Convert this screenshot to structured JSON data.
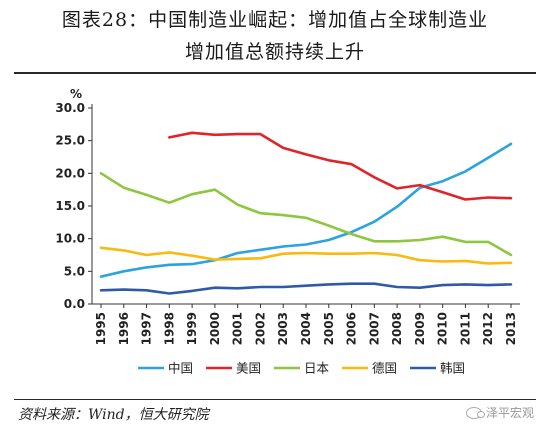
{
  "title": {
    "line1": "图表28：中国制造业崛起：增加值占全球制造业",
    "line2": "增加值总额持续上升"
  },
  "source": "资料来源：Wind，恒大研究院",
  "watermark": "泽平宏观",
  "chart_data": {
    "type": "line",
    "unit": "%",
    "x": [
      "1995",
      "1996",
      "1997",
      "1998",
      "1999",
      "2000",
      "2001",
      "2002",
      "2003",
      "2004",
      "2005",
      "2006",
      "2007",
      "2008",
      "2009",
      "2010",
      "2011",
      "2012",
      "2013"
    ],
    "ylim": [
      0,
      30
    ],
    "yticks": [
      "0.0",
      "5.0",
      "10.0",
      "15.0",
      "20.0",
      "25.0",
      "30.0"
    ],
    "grid": false,
    "legend_position": "bottom",
    "series": [
      {
        "name": "中国",
        "color": "#2aa3de",
        "values": [
          4.2,
          5.0,
          5.6,
          6.0,
          6.1,
          6.7,
          7.8,
          8.3,
          8.8,
          9.1,
          9.8,
          11.0,
          12.6,
          14.9,
          17.8,
          18.8,
          20.3,
          22.4,
          24.5
        ]
      },
      {
        "name": "美国",
        "color": "#e0242b",
        "values": [
          null,
          null,
          null,
          25.5,
          26.2,
          25.9,
          26.0,
          26.0,
          23.9,
          22.9,
          22.0,
          21.4,
          19.4,
          17.7,
          18.2,
          17.1,
          16.0,
          16.3,
          16.2
        ]
      },
      {
        "name": "日本",
        "color": "#8dc63f",
        "values": [
          20.0,
          17.8,
          16.7,
          15.5,
          16.8,
          17.5,
          15.2,
          13.9,
          13.6,
          13.2,
          12.0,
          10.7,
          9.6,
          9.6,
          9.8,
          10.3,
          9.5,
          9.5,
          7.5
        ]
      },
      {
        "name": "德国",
        "color": "#f9b90e",
        "values": [
          8.6,
          8.2,
          7.5,
          7.9,
          7.4,
          6.8,
          6.9,
          7.0,
          7.7,
          7.8,
          7.7,
          7.7,
          7.8,
          7.5,
          6.7,
          6.5,
          6.6,
          6.2,
          6.3
        ]
      },
      {
        "name": "韩国",
        "color": "#2f5aa8",
        "values": [
          2.1,
          2.2,
          2.1,
          1.6,
          2.0,
          2.5,
          2.4,
          2.6,
          2.6,
          2.8,
          3.0,
          3.1,
          3.1,
          2.6,
          2.5,
          2.9,
          3.0,
          2.9,
          3.0
        ]
      }
    ]
  }
}
